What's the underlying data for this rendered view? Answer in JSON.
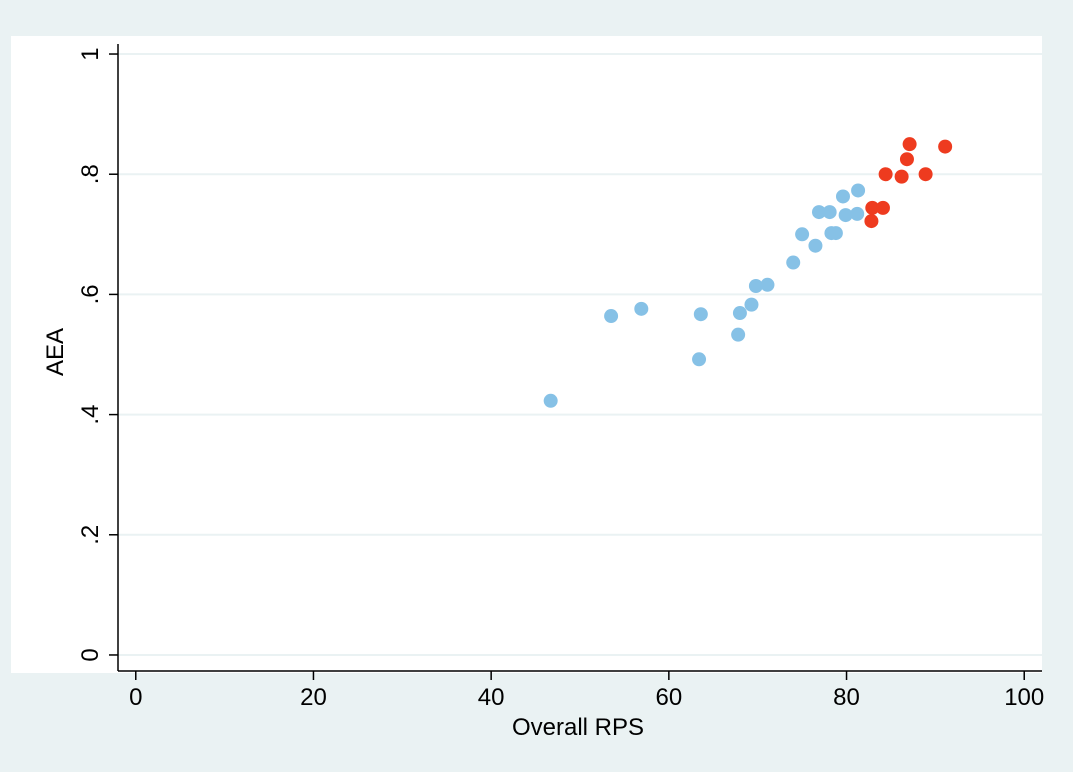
{
  "colors": {
    "outer_background": "#eaf2f3",
    "plot_background": "#ffffff",
    "gridline": "#eaf2f3",
    "axis": "#000000",
    "series_1": "#86c1e6",
    "series_2": "#ee3b1f"
  },
  "chart_data": {
    "type": "scatter",
    "title": "",
    "xlabel": "Overall RPS",
    "ylabel": "AEA",
    "xlim": [
      -2,
      102
    ],
    "ylim": [
      -0.03,
      1.03
    ],
    "x_ticks": [
      0,
      20,
      40,
      60,
      80,
      100
    ],
    "x_tick_labels": [
      "0",
      "20",
      "40",
      "60",
      "80",
      "100"
    ],
    "y_ticks": [
      0,
      0.2,
      0.4,
      0.6,
      0.8,
      1
    ],
    "y_tick_labels": [
      "0",
      ".2",
      ".4",
      ".6",
      ".8",
      "1"
    ],
    "grid": "horizontal",
    "legend": "none",
    "series": [
      {
        "color_key": "series_1",
        "points": [
          {
            "x": 46.7,
            "y": 0.423
          },
          {
            "x": 53.5,
            "y": 0.564
          },
          {
            "x": 56.9,
            "y": 0.576
          },
          {
            "x": 63.4,
            "y": 0.492
          },
          {
            "x": 63.6,
            "y": 0.567
          },
          {
            "x": 67.8,
            "y": 0.533
          },
          {
            "x": 68.0,
            "y": 0.569
          },
          {
            "x": 69.3,
            "y": 0.583
          },
          {
            "x": 69.8,
            "y": 0.614
          },
          {
            "x": 71.1,
            "y": 0.616
          },
          {
            "x": 74.0,
            "y": 0.653
          },
          {
            "x": 75.0,
            "y": 0.7
          },
          {
            "x": 76.5,
            "y": 0.681
          },
          {
            "x": 76.9,
            "y": 0.737
          },
          {
            "x": 78.1,
            "y": 0.737
          },
          {
            "x": 78.3,
            "y": 0.702
          },
          {
            "x": 78.8,
            "y": 0.702
          },
          {
            "x": 79.6,
            "y": 0.763
          },
          {
            "x": 79.9,
            "y": 0.732
          },
          {
            "x": 81.2,
            "y": 0.734
          },
          {
            "x": 81.3,
            "y": 0.773
          }
        ]
      },
      {
        "color_key": "series_2",
        "points": [
          {
            "x": 82.8,
            "y": 0.722
          },
          {
            "x": 82.9,
            "y": 0.744
          },
          {
            "x": 84.1,
            "y": 0.744
          },
          {
            "x": 84.4,
            "y": 0.8
          },
          {
            "x": 86.2,
            "y": 0.796
          },
          {
            "x": 86.8,
            "y": 0.825
          },
          {
            "x": 87.1,
            "y": 0.85
          },
          {
            "x": 88.9,
            "y": 0.8
          },
          {
            "x": 91.1,
            "y": 0.846
          }
        ]
      }
    ]
  }
}
